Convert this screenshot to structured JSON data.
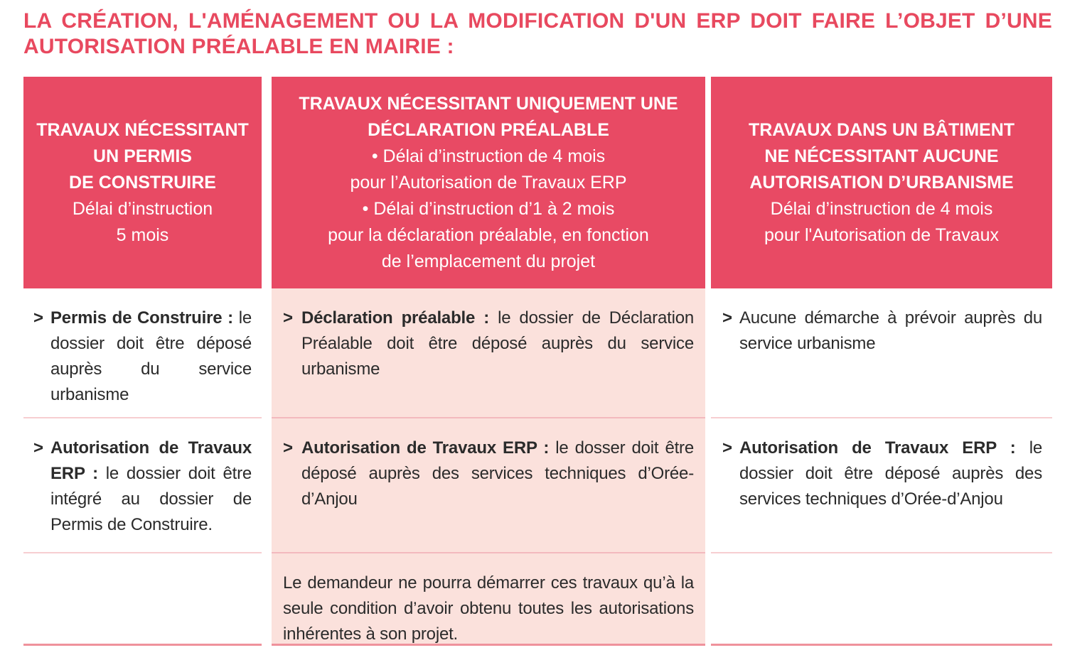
{
  "title": {
    "line1": "LA CRÉATION, L'AMÉNAGEMENT OU LA MODIFICATION D'UN ERP DOIT FAIRE L’OBJET D’UNE",
    "line2": "AUTORISATION PRÉALABLE EN MAIRIE :"
  },
  "colors": {
    "accent_red": "#e84a64",
    "title_red": "#e8495f",
    "cell_pink": "#fbe1dc",
    "divider_light": "#f7ced1",
    "divider_on_pink": "#f3b9be",
    "table_bottom_border": "#ef929c",
    "body_text": "#2b2b2b",
    "header_text": "#ffffff"
  },
  "table": {
    "columns": [
      {
        "header": {
          "bold_lines": [
            "TRAVAUX NÉCESSITANT",
            "UN PERMIS",
            "DE CONSTRUIRE"
          ],
          "normal_lines": [
            "Délai d’instruction",
            "5 mois"
          ]
        },
        "rows": [
          {
            "marker": ">",
            "bold": "Permis de Construire :",
            "text": "le dossier doit être déposé auprès du service urbanisme"
          },
          {
            "marker": ">",
            "bold": "Autorisation de Travaux ERP :",
            "text": "le dossier doit être intégré au dossier de Permis de Construire."
          },
          {
            "text": ""
          }
        ]
      },
      {
        "header": {
          "bold_lines": [
            "TRAVAUX NÉCESSITANT UNIQUEMENT UNE",
            "DÉCLARATION PRÉALABLE"
          ],
          "normal_lines": [
            "• Délai d’instruction de 4 mois",
            "pour l’Autorisation de Travaux ERP",
            "• Délai d’instruction d’1 à 2 mois",
            "pour la déclaration préalable, en fonction",
            "de l’emplacement du projet"
          ]
        },
        "rows": [
          {
            "marker": ">",
            "bold": "Déclaration préalable :",
            "text": "le dossier de Déclaration Préalable doit être déposé auprès du service urbanisme"
          },
          {
            "marker": ">",
            "bold": "Autorisation de Travaux ERP :",
            "text": "le dosser doit être déposé auprès des services techniques d’Orée-d’Anjou"
          },
          {
            "text": "Le demandeur ne pourra démarrer ces travaux qu’à la seule condition d’avoir obtenu toutes les autorisations inhérentes à son projet."
          }
        ]
      },
      {
        "header": {
          "bold_lines": [
            "TRAVAUX DANS UN BÂTIMENT",
            "NE NÉCESSITANT AUCUNE",
            "AUTORISATION D’URBANISME"
          ],
          "normal_lines": [
            "Délai d’instruction de 4 mois",
            "pour l'Autorisation de Travaux"
          ]
        },
        "rows": [
          {
            "marker": ">",
            "bold": "",
            "text": "Aucune démarche à prévoir auprès du service urbanisme"
          },
          {
            "marker": ">",
            "bold": "Autorisation de Travaux ERP :",
            "text": "le dossier doit être déposé auprès des services techniques d’Orée-d’Anjou"
          },
          {
            "text": ""
          }
        ]
      }
    ]
  }
}
